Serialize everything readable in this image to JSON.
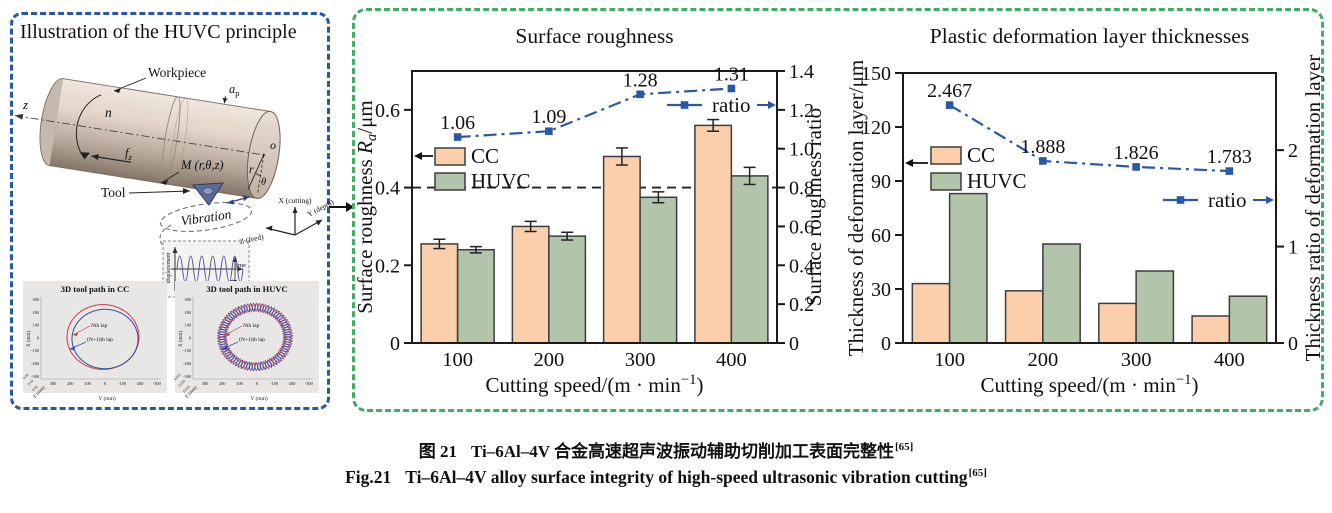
{
  "palette": {
    "cc_fill": "#fbcfac",
    "huvc_fill": "#b2c5ab",
    "ratio_line": "#2b57a7",
    "left_panel_border": "#2956a8",
    "right_panel_border": "#3fae66",
    "bar_edge": "#3d3d3d",
    "toolpath_red": "#c23b4a",
    "toolpath_blue": "#2f4da8"
  },
  "left_panel": {
    "title": "Illustration of the HUVC principle",
    "labels": {
      "workpiece": "Workpiece",
      "z": "z",
      "n": "n",
      "feed_base": "f",
      "feed_sub": "z",
      "ap_base": "a",
      "ap_sub": "p",
      "point": "M (r,θ,z)",
      "o": "o",
      "r": "r",
      "theta": "θ",
      "tool": "Tool",
      "vibration": "Vibration"
    },
    "wave": {
      "y_label": "displacement",
      "x_label": "time",
      "amplitude": "2A"
    },
    "triad": {
      "x": "X (cutting)",
      "y": "Y (depth)",
      "z": "Z (feed)"
    },
    "toolpaths": [
      {
        "type": "cc",
        "title": "3D tool path in CC",
        "lap1": "Nth lap",
        "lap2": "(N+1)th lap",
        "xlabel": "Y (mm)",
        "ylabel": "X (mm)",
        "zlabel": "Z (mm)",
        "yticks": [
          "300",
          "200",
          "100",
          "0",
          "-100",
          "-200",
          "-300"
        ],
        "xticks": [
          "300",
          "200",
          "100",
          "0",
          "-100",
          "-200",
          "-300"
        ],
        "zticks": [
          "0.01",
          "0.02",
          "0.03"
        ]
      },
      {
        "type": "huvc",
        "title": "3D tool path in HUVC",
        "lap1": "Nth lap",
        "lap2": "(N+1)th lap",
        "xlabel": "Y (mm)",
        "ylabel": "X (mm)",
        "zlabel": "Z (mm)",
        "yticks": [
          "300",
          "200",
          "100",
          "0",
          "-100",
          "-200",
          "-300"
        ],
        "xticks": [
          "300",
          "200",
          "100",
          "0",
          "-100",
          "-200",
          "-300"
        ],
        "zticks": [
          "0.015",
          "0.025",
          "0.035"
        ]
      }
    ]
  },
  "chart_data": [
    {
      "type": "bar+line",
      "title": "Surface roughness",
      "categories": [
        "100",
        "200",
        "300",
        "400"
      ],
      "series": [
        {
          "name": "CC",
          "color": "#fbcfac",
          "values": [
            0.255,
            0.3,
            0.48,
            0.56
          ],
          "errors": [
            0.012,
            0.013,
            0.022,
            0.015
          ]
        },
        {
          "name": "HUVC",
          "color": "#b2c5ab",
          "values": [
            0.24,
            0.275,
            0.375,
            0.43
          ],
          "errors": [
            0.008,
            0.01,
            0.014,
            0.022
          ]
        }
      ],
      "ratio": {
        "label": "ratio",
        "color": "#2b57a7",
        "values": [
          1.06,
          1.09,
          1.28,
          1.31
        ],
        "point_labels": [
          "1.06",
          "1.09",
          "1.28",
          "1.31"
        ]
      },
      "xlabel": [
        {
          "t": "Cutting speed/(m · min"
        },
        {
          "t": "−1",
          "s": 1
        },
        {
          "t": ")"
        }
      ],
      "ylabel_left": [
        {
          "t": "Surface roughness "
        },
        {
          "t": "R",
          "i": 1
        },
        {
          "t": "a",
          "s": -1,
          "i": 1
        },
        {
          "t": "/μm"
        }
      ],
      "ylabel_right": [
        {
          "t": "Surface roughness ratio"
        }
      ],
      "ylim_left": [
        0,
        0.7
      ],
      "yticks_left": [
        "0",
        "0.2",
        "0.4",
        "0.6"
      ],
      "ylim_right": [
        0,
        1.4
      ],
      "yticks_right": [
        "0",
        "0.2",
        "0.4",
        "0.6",
        "0.8",
        "1.0",
        "1.2",
        "1.4"
      ],
      "ref_line_left": 0.4,
      "grid": false,
      "legend_position": "upper-left-inside"
    },
    {
      "type": "bar+line",
      "title": "Plastic deformation layer thicknesses",
      "categories": [
        "100",
        "200",
        "300",
        "400"
      ],
      "series": [
        {
          "name": "CC",
          "color": "#fbcfac",
          "values": [
            33,
            29,
            22,
            15
          ]
        },
        {
          "name": "HUVC",
          "color": "#b2c5ab",
          "values": [
            83,
            55,
            40,
            26
          ]
        }
      ],
      "ratio": {
        "label": "ratio",
        "color": "#2b57a7",
        "values": [
          2.467,
          1.888,
          1.826,
          1.783
        ],
        "point_labels": [
          "2.467",
          "1.888",
          "1.826",
          "1.783"
        ]
      },
      "xlabel": [
        {
          "t": "Cutting speed/(m · min"
        },
        {
          "t": "−1",
          "s": 1
        },
        {
          "t": ")"
        }
      ],
      "ylabel_left": [
        {
          "t": "Thickness of deformation layer/μm"
        }
      ],
      "ylabel_right": [
        {
          "t": "Thickness ratio of deformation layer"
        }
      ],
      "ylim_left": [
        0,
        150
      ],
      "yticks_left": [
        "0",
        "30",
        "60",
        "90",
        "120",
        "150"
      ],
      "ylim_right": [
        0,
        2.8
      ],
      "yticks_right": [
        "0",
        "1",
        "2"
      ],
      "grid": false,
      "legend_position": "upper-left-inside"
    }
  ],
  "caption": {
    "zh_label": "图 21",
    "zh_text": "Ti–6Al–4V 合金高速超声波振动辅助切削加工表面完整性",
    "zh_ref": "[65]",
    "en_label": "Fig.21",
    "en_text": "Ti–6Al–4V alloy surface integrity of high-speed ultrasonic vibration cutting",
    "en_ref": "[65]"
  }
}
